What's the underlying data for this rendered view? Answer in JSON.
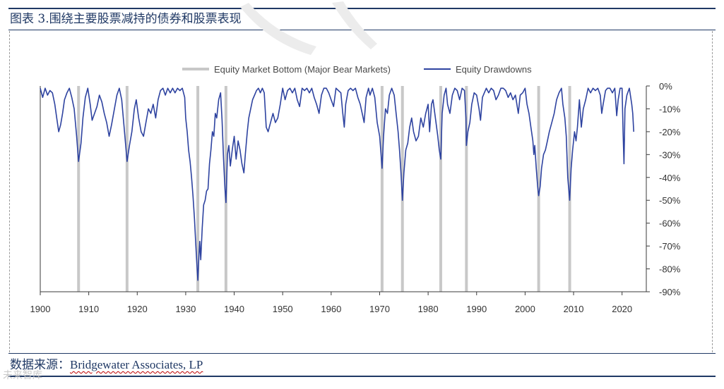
{
  "header": {
    "title": "图表 3.围绕主要股票减持的债券和股票表现"
  },
  "footer": {
    "source_label": "数据来源：",
    "source_name": "Bridgewater Associates, LP"
  },
  "watermark": {
    "text": "未来智库"
  },
  "colors": {
    "drawdown": "#2e43a0",
    "bear_bottom": "#c8c8c8",
    "frame": "#1f3864"
  },
  "chart_data": {
    "type": "line",
    "title": "",
    "xlabel": "",
    "ylabel": "",
    "xlim": [
      1900,
      2025
    ],
    "ylim": [
      -90,
      0
    ],
    "x_ticks": [
      "1900",
      "1910",
      "1920",
      "1930",
      "1940",
      "1950",
      "1960",
      "1970",
      "1980",
      "1990",
      "2000",
      "2010",
      "2020"
    ],
    "y_ticks": [
      "0%",
      "-10%",
      "-20%",
      "-30%",
      "-40%",
      "-50%",
      "-60%",
      "-70%",
      "-80%",
      "-90%"
    ],
    "legend_position": "top-center",
    "series": [
      {
        "name": "Equity Market Bottom (Major Bear Markets)",
        "kind": "vertical_markers",
        "x": [
          1907.9,
          1917.9,
          1932.5,
          1938.3,
          1970.5,
          1974.7,
          1982.6,
          1987.9,
          2002.8,
          2009.2
        ]
      },
      {
        "name": "Equity Drawdowns",
        "kind": "line",
        "points": [
          [
            1900,
            -1
          ],
          [
            1900.5,
            -5
          ],
          [
            1901,
            -1
          ],
          [
            1901.5,
            -4
          ],
          [
            1902,
            -2
          ],
          [
            1902.5,
            -3
          ],
          [
            1903,
            -8
          ],
          [
            1903.4,
            -14
          ],
          [
            1903.8,
            -20
          ],
          [
            1904.2,
            -17
          ],
          [
            1904.6,
            -12
          ],
          [
            1905,
            -6
          ],
          [
            1905.5,
            -3
          ],
          [
            1906,
            -1
          ],
          [
            1906.5,
            -5
          ],
          [
            1907,
            -10
          ],
          [
            1907.5,
            -22
          ],
          [
            1907.9,
            -33
          ],
          [
            1908.4,
            -25
          ],
          [
            1908.8,
            -14
          ],
          [
            1909.3,
            -5
          ],
          [
            1909.8,
            -1
          ],
          [
            1910.3,
            -8
          ],
          [
            1910.7,
            -15
          ],
          [
            1911.2,
            -12
          ],
          [
            1911.7,
            -9
          ],
          [
            1912.2,
            -4
          ],
          [
            1912.7,
            -7
          ],
          [
            1913.2,
            -12
          ],
          [
            1913.7,
            -16
          ],
          [
            1914.2,
            -22
          ],
          [
            1914.7,
            -17
          ],
          [
            1915.3,
            -10
          ],
          [
            1915.8,
            -4
          ],
          [
            1916.3,
            -1
          ],
          [
            1916.8,
            -6
          ],
          [
            1917.3,
            -18
          ],
          [
            1917.9,
            -33
          ],
          [
            1918.4,
            -26
          ],
          [
            1918.9,
            -20
          ],
          [
            1919.4,
            -10
          ],
          [
            1919.8,
            -6
          ],
          [
            1920.3,
            -14
          ],
          [
            1920.8,
            -20
          ],
          [
            1921.3,
            -22
          ],
          [
            1921.8,
            -16
          ],
          [
            1922.3,
            -10
          ],
          [
            1922.8,
            -12
          ],
          [
            1923.3,
            -8
          ],
          [
            1923.8,
            -14
          ],
          [
            1924.3,
            -6
          ],
          [
            1924.8,
            -2
          ],
          [
            1925.3,
            -1
          ],
          [
            1925.8,
            -4
          ],
          [
            1926.3,
            -1
          ],
          [
            1926.8,
            -3
          ],
          [
            1927.3,
            -1
          ],
          [
            1927.8,
            -3
          ],
          [
            1928.3,
            -1
          ],
          [
            1928.8,
            -2
          ],
          [
            1929.3,
            -1
          ],
          [
            1929.8,
            -5
          ],
          [
            1930,
            -14
          ],
          [
            1930.3,
            -20
          ],
          [
            1930.6,
            -28
          ],
          [
            1930.9,
            -33
          ],
          [
            1931.2,
            -40
          ],
          [
            1931.5,
            -48
          ],
          [
            1931.8,
            -58
          ],
          [
            1932.1,
            -70
          ],
          [
            1932.3,
            -78
          ],
          [
            1932.5,
            -85
          ],
          [
            1932.7,
            -75
          ],
          [
            1932.9,
            -68
          ],
          [
            1933.1,
            -76
          ],
          [
            1933.4,
            -62
          ],
          [
            1933.7,
            -52
          ],
          [
            1934,
            -50
          ],
          [
            1934.3,
            -46
          ],
          [
            1934.6,
            -45
          ],
          [
            1934.9,
            -34
          ],
          [
            1935.2,
            -28
          ],
          [
            1935.5,
            -20
          ],
          [
            1935.8,
            -22
          ],
          [
            1936.1,
            -12
          ],
          [
            1936.4,
            -14
          ],
          [
            1936.8,
            -6
          ],
          [
            1937.2,
            -3
          ],
          [
            1937.5,
            -15
          ],
          [
            1937.8,
            -32
          ],
          [
            1938.1,
            -45
          ],
          [
            1938.3,
            -51
          ],
          [
            1938.6,
            -30
          ],
          [
            1938.9,
            -26
          ],
          [
            1939.2,
            -35
          ],
          [
            1939.6,
            -28
          ],
          [
            1940,
            -22
          ],
          [
            1940.4,
            -32
          ],
          [
            1940.8,
            -24
          ],
          [
            1941.2,
            -28
          ],
          [
            1941.6,
            -34
          ],
          [
            1942,
            -38
          ],
          [
            1942.3,
            -30
          ],
          [
            1942.7,
            -20
          ],
          [
            1943,
            -14
          ],
          [
            1943.4,
            -10
          ],
          [
            1943.8,
            -6
          ],
          [
            1944.2,
            -4
          ],
          [
            1944.6,
            -2
          ],
          [
            1945,
            -1
          ],
          [
            1945.4,
            -3
          ],
          [
            1945.8,
            -1
          ],
          [
            1946.2,
            -3
          ],
          [
            1946.6,
            -18
          ],
          [
            1947,
            -20
          ],
          [
            1947.5,
            -16
          ],
          [
            1948,
            -12
          ],
          [
            1948.5,
            -16
          ],
          [
            1949,
            -14
          ],
          [
            1949.5,
            -8
          ],
          [
            1950,
            -1
          ],
          [
            1950.5,
            -6
          ],
          [
            1951,
            -2
          ],
          [
            1951.5,
            -1
          ],
          [
            1952,
            -3
          ],
          [
            1952.5,
            -1
          ],
          [
            1953,
            -6
          ],
          [
            1953.5,
            -9
          ],
          [
            1954,
            -1
          ],
          [
            1954.5,
            -2
          ],
          [
            1955,
            -1
          ],
          [
            1955.5,
            -3
          ],
          [
            1956,
            -1
          ],
          [
            1956.5,
            -5
          ],
          [
            1957,
            -8
          ],
          [
            1957.5,
            -12
          ],
          [
            1958,
            -4
          ],
          [
            1958.5,
            -1
          ],
          [
            1959,
            -1
          ],
          [
            1959.5,
            -3
          ],
          [
            1960,
            -6
          ],
          [
            1960.5,
            -9
          ],
          [
            1961,
            -1
          ],
          [
            1961.5,
            -2
          ],
          [
            1962,
            -3
          ],
          [
            1962.4,
            -12
          ],
          [
            1962.7,
            -18
          ],
          [
            1963,
            -8
          ],
          [
            1963.5,
            -2
          ],
          [
            1964,
            -1
          ],
          [
            1964.5,
            -2
          ],
          [
            1965,
            -1
          ],
          [
            1965.5,
            -5
          ],
          [
            1966,
            -8
          ],
          [
            1966.5,
            -13
          ],
          [
            1966.8,
            -16
          ],
          [
            1967.2,
            -5
          ],
          [
            1967.7,
            -1
          ],
          [
            1968,
            -4
          ],
          [
            1968.5,
            -1
          ],
          [
            1969,
            -5
          ],
          [
            1969.5,
            -16
          ],
          [
            1970,
            -22
          ],
          [
            1970.3,
            -30
          ],
          [
            1970.5,
            -36
          ],
          [
            1970.8,
            -22
          ],
          [
            1971.2,
            -10
          ],
          [
            1971.6,
            -12
          ],
          [
            1972,
            -4
          ],
          [
            1972.5,
            -1
          ],
          [
            1973,
            -4
          ],
          [
            1973.4,
            -12
          ],
          [
            1973.8,
            -20
          ],
          [
            1974.1,
            -28
          ],
          [
            1974.4,
            -38
          ],
          [
            1974.7,
            -50
          ],
          [
            1975,
            -38
          ],
          [
            1975.4,
            -28
          ],
          [
            1975.8,
            -25
          ],
          [
            1976.2,
            -18
          ],
          [
            1976.6,
            -14
          ],
          [
            1977,
            -20
          ],
          [
            1977.5,
            -24
          ],
          [
            1978,
            -22
          ],
          [
            1978.5,
            -14
          ],
          [
            1979,
            -18
          ],
          [
            1979.5,
            -12
          ],
          [
            1980,
            -8
          ],
          [
            1980.3,
            -20
          ],
          [
            1980.7,
            -8
          ],
          [
            1981,
            -6
          ],
          [
            1981.5,
            -14
          ],
          [
            1982,
            -22
          ],
          [
            1982.3,
            -28
          ],
          [
            1982.6,
            -32
          ],
          [
            1982.9,
            -12
          ],
          [
            1983.3,
            -4
          ],
          [
            1983.7,
            -1
          ],
          [
            1984,
            -8
          ],
          [
            1984.5,
            -12
          ],
          [
            1985,
            -4
          ],
          [
            1985.5,
            -1
          ],
          [
            1986,
            -2
          ],
          [
            1986.5,
            -6
          ],
          [
            1987,
            -1
          ],
          [
            1987.5,
            -2
          ],
          [
            1987.8,
            -14
          ],
          [
            1987.9,
            -26
          ],
          [
            1988.2,
            -20
          ],
          [
            1988.6,
            -16
          ],
          [
            1989,
            -8
          ],
          [
            1989.5,
            -3
          ],
          [
            1990,
            -4
          ],
          [
            1990.5,
            -10
          ],
          [
            1990.8,
            -15
          ],
          [
            1991.2,
            -5
          ],
          [
            1991.6,
            -3
          ],
          [
            1992,
            -1
          ],
          [
            1992.5,
            -3
          ],
          [
            1993,
            -1
          ],
          [
            1993.5,
            -2
          ],
          [
            1994,
            -6
          ],
          [
            1994.5,
            -4
          ],
          [
            1995,
            -1
          ],
          [
            1995.5,
            -1
          ],
          [
            1996,
            -2
          ],
          [
            1996.5,
            -5
          ],
          [
            1997,
            -3
          ],
          [
            1997.5,
            -6
          ],
          [
            1998,
            -4
          ],
          [
            1998.6,
            -12
          ],
          [
            1999,
            -4
          ],
          [
            1999.5,
            -3
          ],
          [
            2000,
            -1
          ],
          [
            2000.4,
            -8
          ],
          [
            2000.8,
            -12
          ],
          [
            2001.2,
            -18
          ],
          [
            2001.6,
            -24
          ],
          [
            2001.8,
            -30
          ],
          [
            2002,
            -26
          ],
          [
            2002.3,
            -36
          ],
          [
            2002.6,
            -44
          ],
          [
            2002.8,
            -48
          ],
          [
            2003.1,
            -44
          ],
          [
            2003.4,
            -36
          ],
          [
            2003.8,
            -30
          ],
          [
            2004.2,
            -28
          ],
          [
            2004.6,
            -24
          ],
          [
            2005,
            -20
          ],
          [
            2005.5,
            -16
          ],
          [
            2006,
            -12
          ],
          [
            2006.5,
            -6
          ],
          [
            2007,
            -3
          ],
          [
            2007.5,
            -1
          ],
          [
            2007.8,
            -8
          ],
          [
            2008.2,
            -14
          ],
          [
            2008.5,
            -22
          ],
          [
            2008.8,
            -40
          ],
          [
            2009.2,
            -50
          ],
          [
            2009.5,
            -36
          ],
          [
            2009.8,
            -28
          ],
          [
            2010.2,
            -20
          ],
          [
            2010.5,
            -24
          ],
          [
            2010.8,
            -18
          ],
          [
            2011.2,
            -6
          ],
          [
            2011.6,
            -18
          ],
          [
            2012,
            -10
          ],
          [
            2012.5,
            -6
          ],
          [
            2013,
            -1
          ],
          [
            2013.5,
            -3
          ],
          [
            2014,
            -1
          ],
          [
            2014.5,
            -2
          ],
          [
            2015,
            -1
          ],
          [
            2015.5,
            -4
          ],
          [
            2015.8,
            -12
          ],
          [
            2016.1,
            -8
          ],
          [
            2016.6,
            -2
          ],
          [
            2017,
            -1
          ],
          [
            2017.5,
            -1
          ],
          [
            2018,
            -3
          ],
          [
            2018.5,
            -1
          ],
          [
            2018.9,
            -13
          ],
          [
            2019.2,
            -6
          ],
          [
            2019.6,
            -1
          ],
          [
            2020,
            -1
          ],
          [
            2020.2,
            -20
          ],
          [
            2020.4,
            -34
          ],
          [
            2020.6,
            -10
          ],
          [
            2021,
            -4
          ],
          [
            2021.5,
            -1
          ],
          [
            2022,
            -8
          ],
          [
            2022.2,
            -12
          ],
          [
            2022.4,
            -20
          ]
        ]
      }
    ]
  }
}
